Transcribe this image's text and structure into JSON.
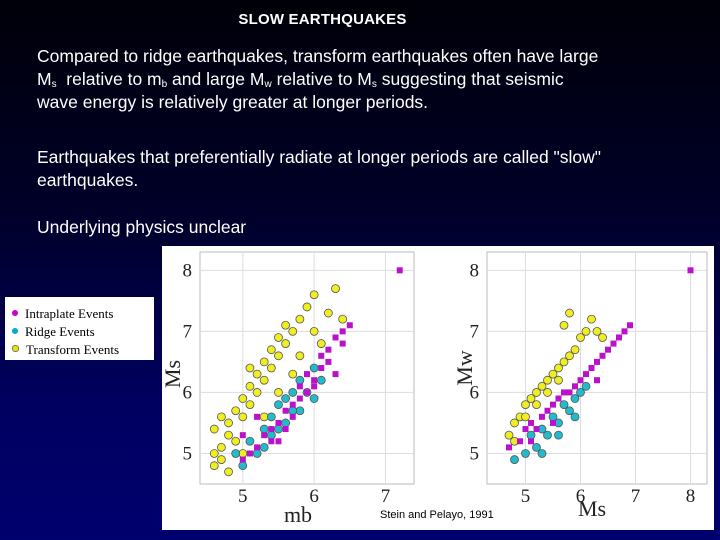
{
  "slide": {
    "title": "SLOW EARTHQUAKES",
    "p1": {
      "line1": "Compared to ridge earthquakes, transform earthquakes often have large",
      "l2_a": "M",
      "l2_sub1": "s",
      "l2_b": "  relative to m",
      "l2_sub2": "b",
      "l2_c": " and large M",
      "l2_sub3": "w",
      "l2_d": " relative to M",
      "l2_sub4": "s",
      "l2_e": " suggesting that seismic",
      "line3": "wave energy is relatively greater at longer periods."
    },
    "p2": {
      "line1": "Earthquakes that preferentially radiate at longer periods are called \"slow\"",
      "line2": "earthquakes."
    },
    "p3": "Underlying physics unclear"
  },
  "legend": {
    "items": [
      {
        "label": "Intraplate Events",
        "color": "#cc00cc"
      },
      {
        "label": "Ridge Events",
        "color": "#00aacc"
      },
      {
        "label": "Transform Events",
        "color": "#e6e600"
      }
    ]
  },
  "colors": {
    "intraplate": "#bb11cc",
    "ridge": "#22bbcc",
    "transform": "#eeee22"
  },
  "credit": "Stein and Pelayo, 1991",
  "chart_data": [
    {
      "type": "scatter",
      "xlabel": "mb",
      "ylabel": "Ms",
      "xticks": [
        "5",
        "6",
        "7"
      ],
      "yticks": [
        "5",
        "6",
        "7",
        "8"
      ],
      "xlim": [
        4.4,
        7.4
      ],
      "ylim": [
        4.5,
        8.3
      ],
      "series": [
        {
          "name": "Intraplate Events",
          "color": "#bb11cc",
          "points": [
            [
              7.2,
              8.0
            ],
            [
              5.0,
              4.9
            ],
            [
              5.1,
              5.0
            ],
            [
              5.2,
              5.1
            ],
            [
              5.3,
              5.3
            ],
            [
              5.4,
              5.2
            ],
            [
              5.4,
              5.4
            ],
            [
              5.5,
              5.5
            ],
            [
              5.6,
              5.4
            ],
            [
              5.6,
              5.7
            ],
            [
              5.7,
              5.6
            ],
            [
              5.7,
              5.8
            ],
            [
              5.8,
              5.9
            ],
            [
              5.8,
              6.1
            ],
            [
              5.9,
              6.0
            ],
            [
              5.9,
              6.3
            ],
            [
              6.0,
              6.1
            ],
            [
              6.0,
              6.2
            ],
            [
              6.1,
              6.4
            ],
            [
              6.1,
              6.6
            ],
            [
              6.2,
              6.5
            ],
            [
              6.2,
              6.7
            ],
            [
              6.3,
              6.3
            ],
            [
              6.3,
              6.9
            ],
            [
              6.4,
              7.0
            ],
            [
              6.4,
              6.8
            ],
            [
              6.5,
              7.1
            ],
            [
              5.2,
              5.6
            ],
            [
              5.0,
              5.3
            ],
            [
              5.5,
              5.2
            ]
          ]
        },
        {
          "name": "Ridge Events",
          "color": "#22bbcc",
          "points": [
            [
              4.9,
              5.0
            ],
            [
              5.0,
              4.8
            ],
            [
              5.1,
              5.2
            ],
            [
              5.2,
              5.0
            ],
            [
              5.3,
              5.4
            ],
            [
              5.4,
              5.6
            ],
            [
              5.4,
              5.3
            ],
            [
              5.5,
              5.8
            ],
            [
              5.6,
              5.9
            ],
            [
              5.6,
              5.5
            ],
            [
              5.7,
              6.0
            ],
            [
              5.8,
              6.2
            ],
            [
              5.8,
              5.7
            ],
            [
              5.9,
              6.0
            ],
            [
              6.0,
              6.4
            ],
            [
              6.1,
              6.2
            ],
            [
              5.3,
              5.1
            ],
            [
              5.5,
              5.4
            ],
            [
              5.7,
              5.7
            ],
            [
              6.0,
              5.9
            ]
          ]
        },
        {
          "name": "Transform Events",
          "color": "#eeee22",
          "points": [
            [
              4.6,
              4.8
            ],
            [
              4.6,
              5.0
            ],
            [
              4.7,
              5.1
            ],
            [
              4.7,
              4.9
            ],
            [
              4.8,
              5.3
            ],
            [
              4.8,
              5.5
            ],
            [
              4.9,
              5.7
            ],
            [
              4.9,
              5.2
            ],
            [
              5.0,
              5.6
            ],
            [
              5.0,
              5.9
            ],
            [
              5.1,
              5.8
            ],
            [
              5.1,
              6.1
            ],
            [
              5.2,
              6.0
            ],
            [
              5.2,
              6.3
            ],
            [
              5.3,
              6.2
            ],
            [
              5.3,
              6.5
            ],
            [
              5.4,
              6.4
            ],
            [
              5.4,
              6.7
            ],
            [
              5.5,
              6.6
            ],
            [
              5.5,
              6.9
            ],
            [
              5.6,
              6.8
            ],
            [
              5.6,
              7.1
            ],
            [
              5.7,
              7.0
            ],
            [
              5.8,
              7.2
            ],
            [
              5.9,
              7.4
            ],
            [
              6.0,
              7.6
            ],
            [
              5.8,
              6.6
            ],
            [
              6.0,
              7.0
            ],
            [
              6.2,
              7.3
            ],
            [
              6.3,
              7.7
            ],
            [
              4.6,
              5.4
            ],
            [
              4.8,
              4.7
            ],
            [
              5.0,
              5.0
            ],
            [
              5.3,
              5.6
            ],
            [
              5.5,
              6.0
            ],
            [
              5.7,
              6.3
            ],
            [
              4.7,
              5.6
            ],
            [
              5.1,
              6.4
            ],
            [
              6.1,
              6.8
            ],
            [
              6.4,
              7.2
            ]
          ]
        }
      ]
    },
    {
      "type": "scatter",
      "xlabel": "Ms",
      "ylabel": "Mw",
      "xticks": [
        "5",
        "6",
        "7",
        "8"
      ],
      "yticks": [
        "5",
        "6",
        "7",
        "8"
      ],
      "xlim": [
        4.3,
        8.3
      ],
      "ylim": [
        4.5,
        8.3
      ],
      "series": [
        {
          "name": "Intraplate Events",
          "color": "#bb11cc",
          "points": [
            [
              8.0,
              8.0
            ],
            [
              4.7,
              5.1
            ],
            [
              4.9,
              5.2
            ],
            [
              5.0,
              5.4
            ],
            [
              5.1,
              5.5
            ],
            [
              5.2,
              5.4
            ],
            [
              5.3,
              5.6
            ],
            [
              5.4,
              5.7
            ],
            [
              5.5,
              5.8
            ],
            [
              5.6,
              5.9
            ],
            [
              5.7,
              6.0
            ],
            [
              5.8,
              6.0
            ],
            [
              5.9,
              6.1
            ],
            [
              6.0,
              6.2
            ],
            [
              6.1,
              6.3
            ],
            [
              6.2,
              6.4
            ],
            [
              6.3,
              6.5
            ],
            [
              6.4,
              6.6
            ],
            [
              6.5,
              6.7
            ],
            [
              6.6,
              6.8
            ],
            [
              6.7,
              6.9
            ],
            [
              6.8,
              7.0
            ],
            [
              6.9,
              7.1
            ],
            [
              5.1,
              5.2
            ],
            [
              5.5,
              5.5
            ],
            [
              6.3,
              6.2
            ]
          ]
        },
        {
          "name": "Ridge Events",
          "color": "#22bbcc",
          "points": [
            [
              4.8,
              4.9
            ],
            [
              5.0,
              5.0
            ],
            [
              5.1,
              5.3
            ],
            [
              5.2,
              5.1
            ],
            [
              5.3,
              5.4
            ],
            [
              5.4,
              5.3
            ],
            [
              5.5,
              5.6
            ],
            [
              5.6,
              5.5
            ],
            [
              5.7,
              5.8
            ],
            [
              5.8,
              5.7
            ],
            [
              5.9,
              5.9
            ],
            [
              6.0,
              6.0
            ],
            [
              6.1,
              6.1
            ],
            [
              5.3,
              5.0
            ],
            [
              5.6,
              5.3
            ],
            [
              5.9,
              5.6
            ]
          ]
        },
        {
          "name": "Transform Events",
          "color": "#eeee22",
          "points": [
            [
              4.7,
              5.3
            ],
            [
              4.8,
              5.5
            ],
            [
              4.9,
              5.6
            ],
            [
              5.0,
              5.8
            ],
            [
              5.1,
              5.9
            ],
            [
              5.2,
              6.0
            ],
            [
              5.3,
              6.1
            ],
            [
              5.4,
              6.2
            ],
            [
              5.5,
              6.3
            ],
            [
              5.6,
              6.4
            ],
            [
              5.7,
              6.5
            ],
            [
              5.8,
              6.6
            ],
            [
              5.9,
              6.7
            ],
            [
              6.0,
              6.9
            ],
            [
              6.1,
              7.0
            ],
            [
              6.2,
              7.2
            ],
            [
              6.3,
              7.0
            ],
            [
              5.7,
              7.1
            ],
            [
              5.8,
              7.3
            ],
            [
              4.8,
              5.2
            ],
            [
              5.0,
              5.6
            ],
            [
              5.2,
              5.8
            ],
            [
              5.4,
              6.0
            ],
            [
              5.6,
              6.2
            ],
            [
              6.4,
              6.9
            ]
          ]
        }
      ]
    }
  ]
}
